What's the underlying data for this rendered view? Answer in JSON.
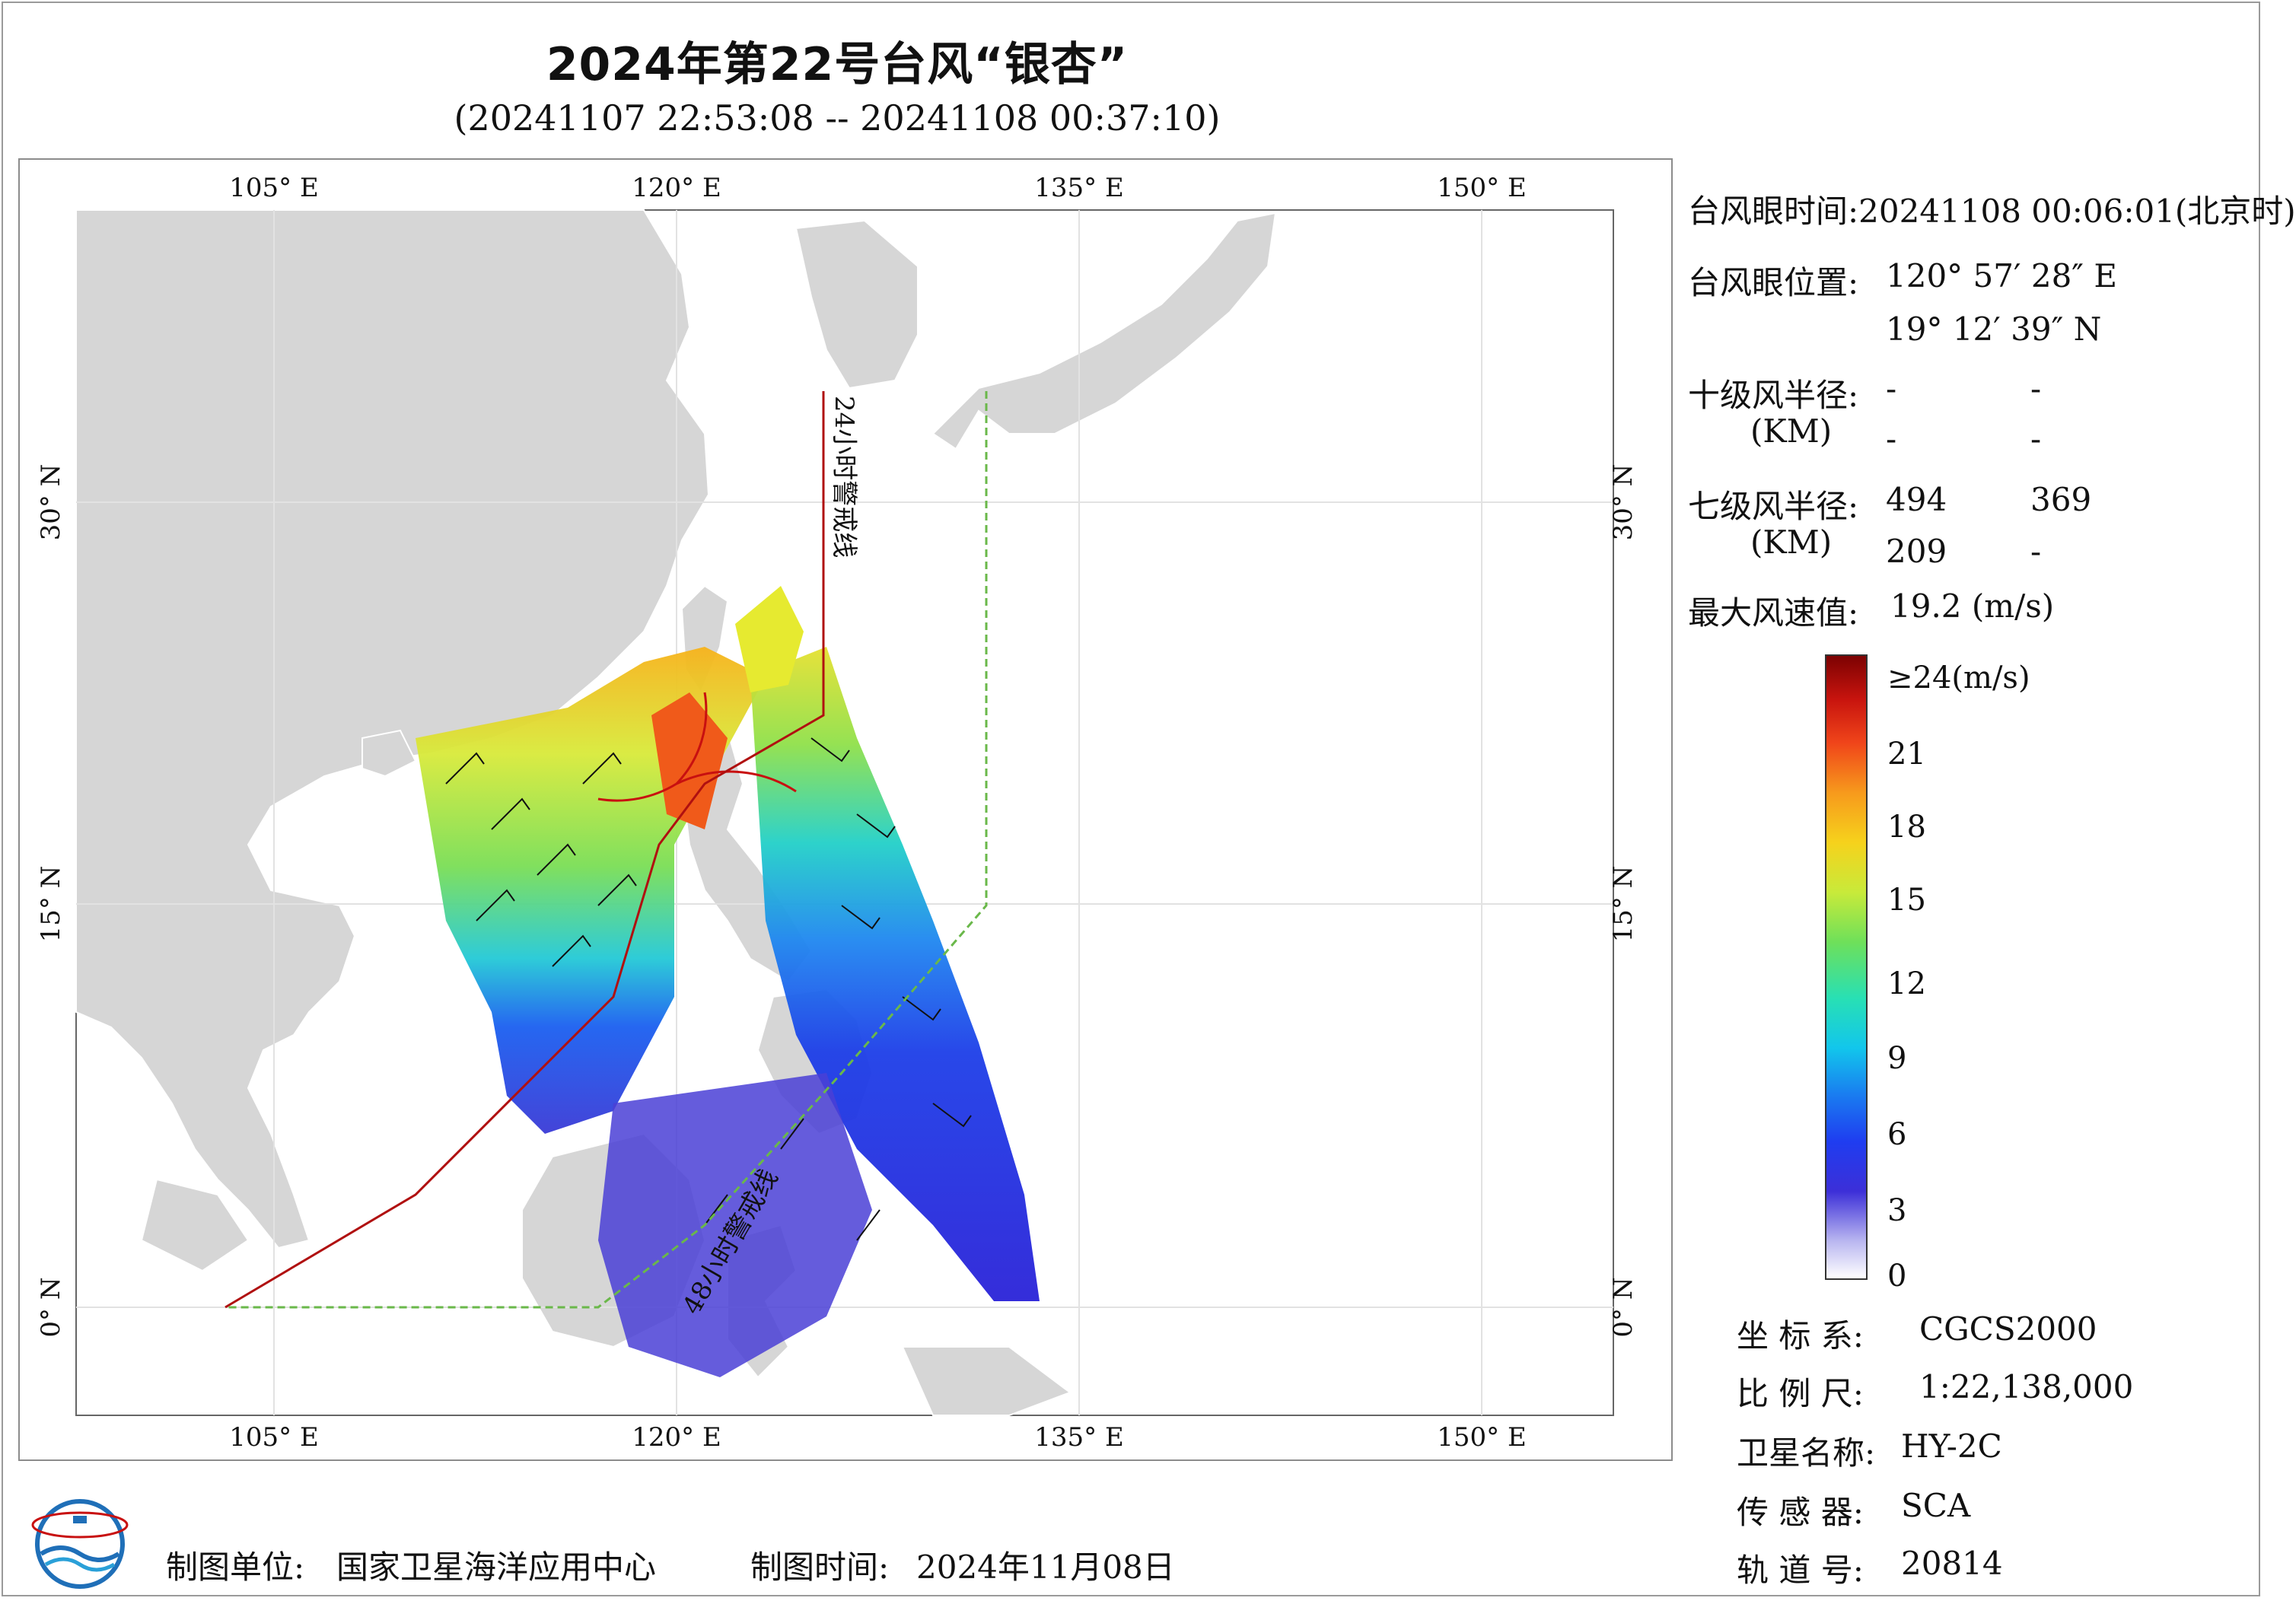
{
  "title": "2024年第22号台风“银杏”",
  "subtitle": "(20241107 22:53:08 -- 20241108 00:37:10)",
  "map": {
    "lon_ticks": [
      "105° E",
      "120° E",
      "135° E",
      "150° E"
    ],
    "lat_ticks": [
      "30° N",
      "15° N",
      "0° N"
    ],
    "warning_line_24h": "24小时警戒线",
    "warning_line_48h": "48小时警戒线",
    "colors": {
      "land": "#d6d6d6",
      "sea": "#ffffff",
      "warning_24h": "#b01010",
      "warning_48h": "#6ab84a",
      "circle": "#c81010"
    }
  },
  "info": {
    "eye_time_label": "台风眼时间:",
    "eye_time_value": "20241108 00:06:01(北京时)",
    "eye_pos_label": "台风眼位置:",
    "eye_lon": "120° 57′ 28″ E",
    "eye_lat": "19° 12′ 39″ N",
    "r10_label": "十级风半径:",
    "r10_unit": "(KM)",
    "r10_values": [
      "-",
      "-",
      "-",
      "-"
    ],
    "r7_label": "七级风半径:",
    "r7_unit": "(KM)",
    "r7_values": [
      "494",
      "369",
      "209",
      "-"
    ],
    "max_wind_label": "最大风速值:",
    "max_wind_value": "19.2 (m/s)"
  },
  "colorbar": {
    "labels": [
      "≥24(m/s)",
      "21",
      "18",
      "15",
      "12",
      "9",
      "6",
      "3",
      "0"
    ],
    "values": [
      24,
      21,
      18,
      15,
      12,
      9,
      6,
      3,
      0
    ],
    "unit": "m/s"
  },
  "meta": {
    "crs_label": "坐 标 系:",
    "crs_value": "CGCS2000",
    "scale_label": "比 例 尺:",
    "scale_value": "1:22,138,000",
    "sat_label": "卫星名称:",
    "sat_value": "HY-2C",
    "sensor_label": "传 感 器:",
    "sensor_value": "SCA",
    "orbit_label": "轨 道 号:",
    "orbit_value": "20814"
  },
  "footer": {
    "unit_label": "制图单位:",
    "unit_value": "国家卫星海洋应用中心",
    "time_label": "制图时间:",
    "time_value": "2024年11月08日"
  },
  "icons": {
    "logo": "nsoas-logo-icon"
  }
}
